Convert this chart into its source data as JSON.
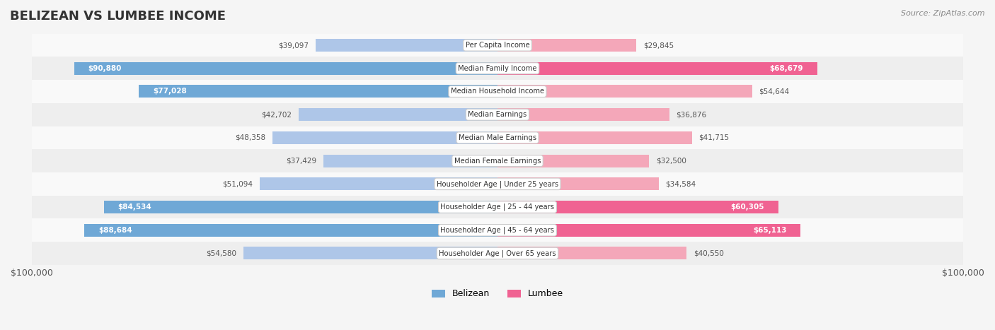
{
  "title": "BELIZEAN VS LUMBEE INCOME",
  "source": "Source: ZipAtlas.com",
  "categories": [
    "Per Capita Income",
    "Median Family Income",
    "Median Household Income",
    "Median Earnings",
    "Median Male Earnings",
    "Median Female Earnings",
    "Householder Age | Under 25 years",
    "Householder Age | 25 - 44 years",
    "Householder Age | 45 - 64 years",
    "Householder Age | Over 65 years"
  ],
  "belizean_values": [
    39097,
    90880,
    77028,
    42702,
    48358,
    37429,
    51094,
    84534,
    88684,
    54580
  ],
  "lumbee_values": [
    29845,
    68679,
    54644,
    36876,
    41715,
    32500,
    34584,
    60305,
    65113,
    40550
  ],
  "belizean_labels": [
    "$39,097",
    "$90,880",
    "$77,028",
    "$42,702",
    "$48,358",
    "$37,429",
    "$51,094",
    "$84,534",
    "$88,684",
    "$54,580"
  ],
  "lumbee_labels": [
    "$29,845",
    "$68,679",
    "$54,644",
    "$36,876",
    "$41,715",
    "$32,500",
    "$34,584",
    "$60,305",
    "$65,113",
    "$40,550"
  ],
  "max_value": 100000,
  "belizean_color_light": "#aec6e8",
  "belizean_color_dark": "#6fa8d6",
  "lumbee_color_light": "#f4a7b9",
  "lumbee_color_dark": "#f06292",
  "bg_color": "#f5f5f5",
  "row_bg_light": "#f9f9f9",
  "row_bg_dark": "#eeeeee",
  "bar_height": 0.55,
  "xlabel_left": "$100,000",
  "xlabel_right": "$100,000",
  "legend_belizean": "Belizean",
  "legend_lumbee": "Lumbee"
}
